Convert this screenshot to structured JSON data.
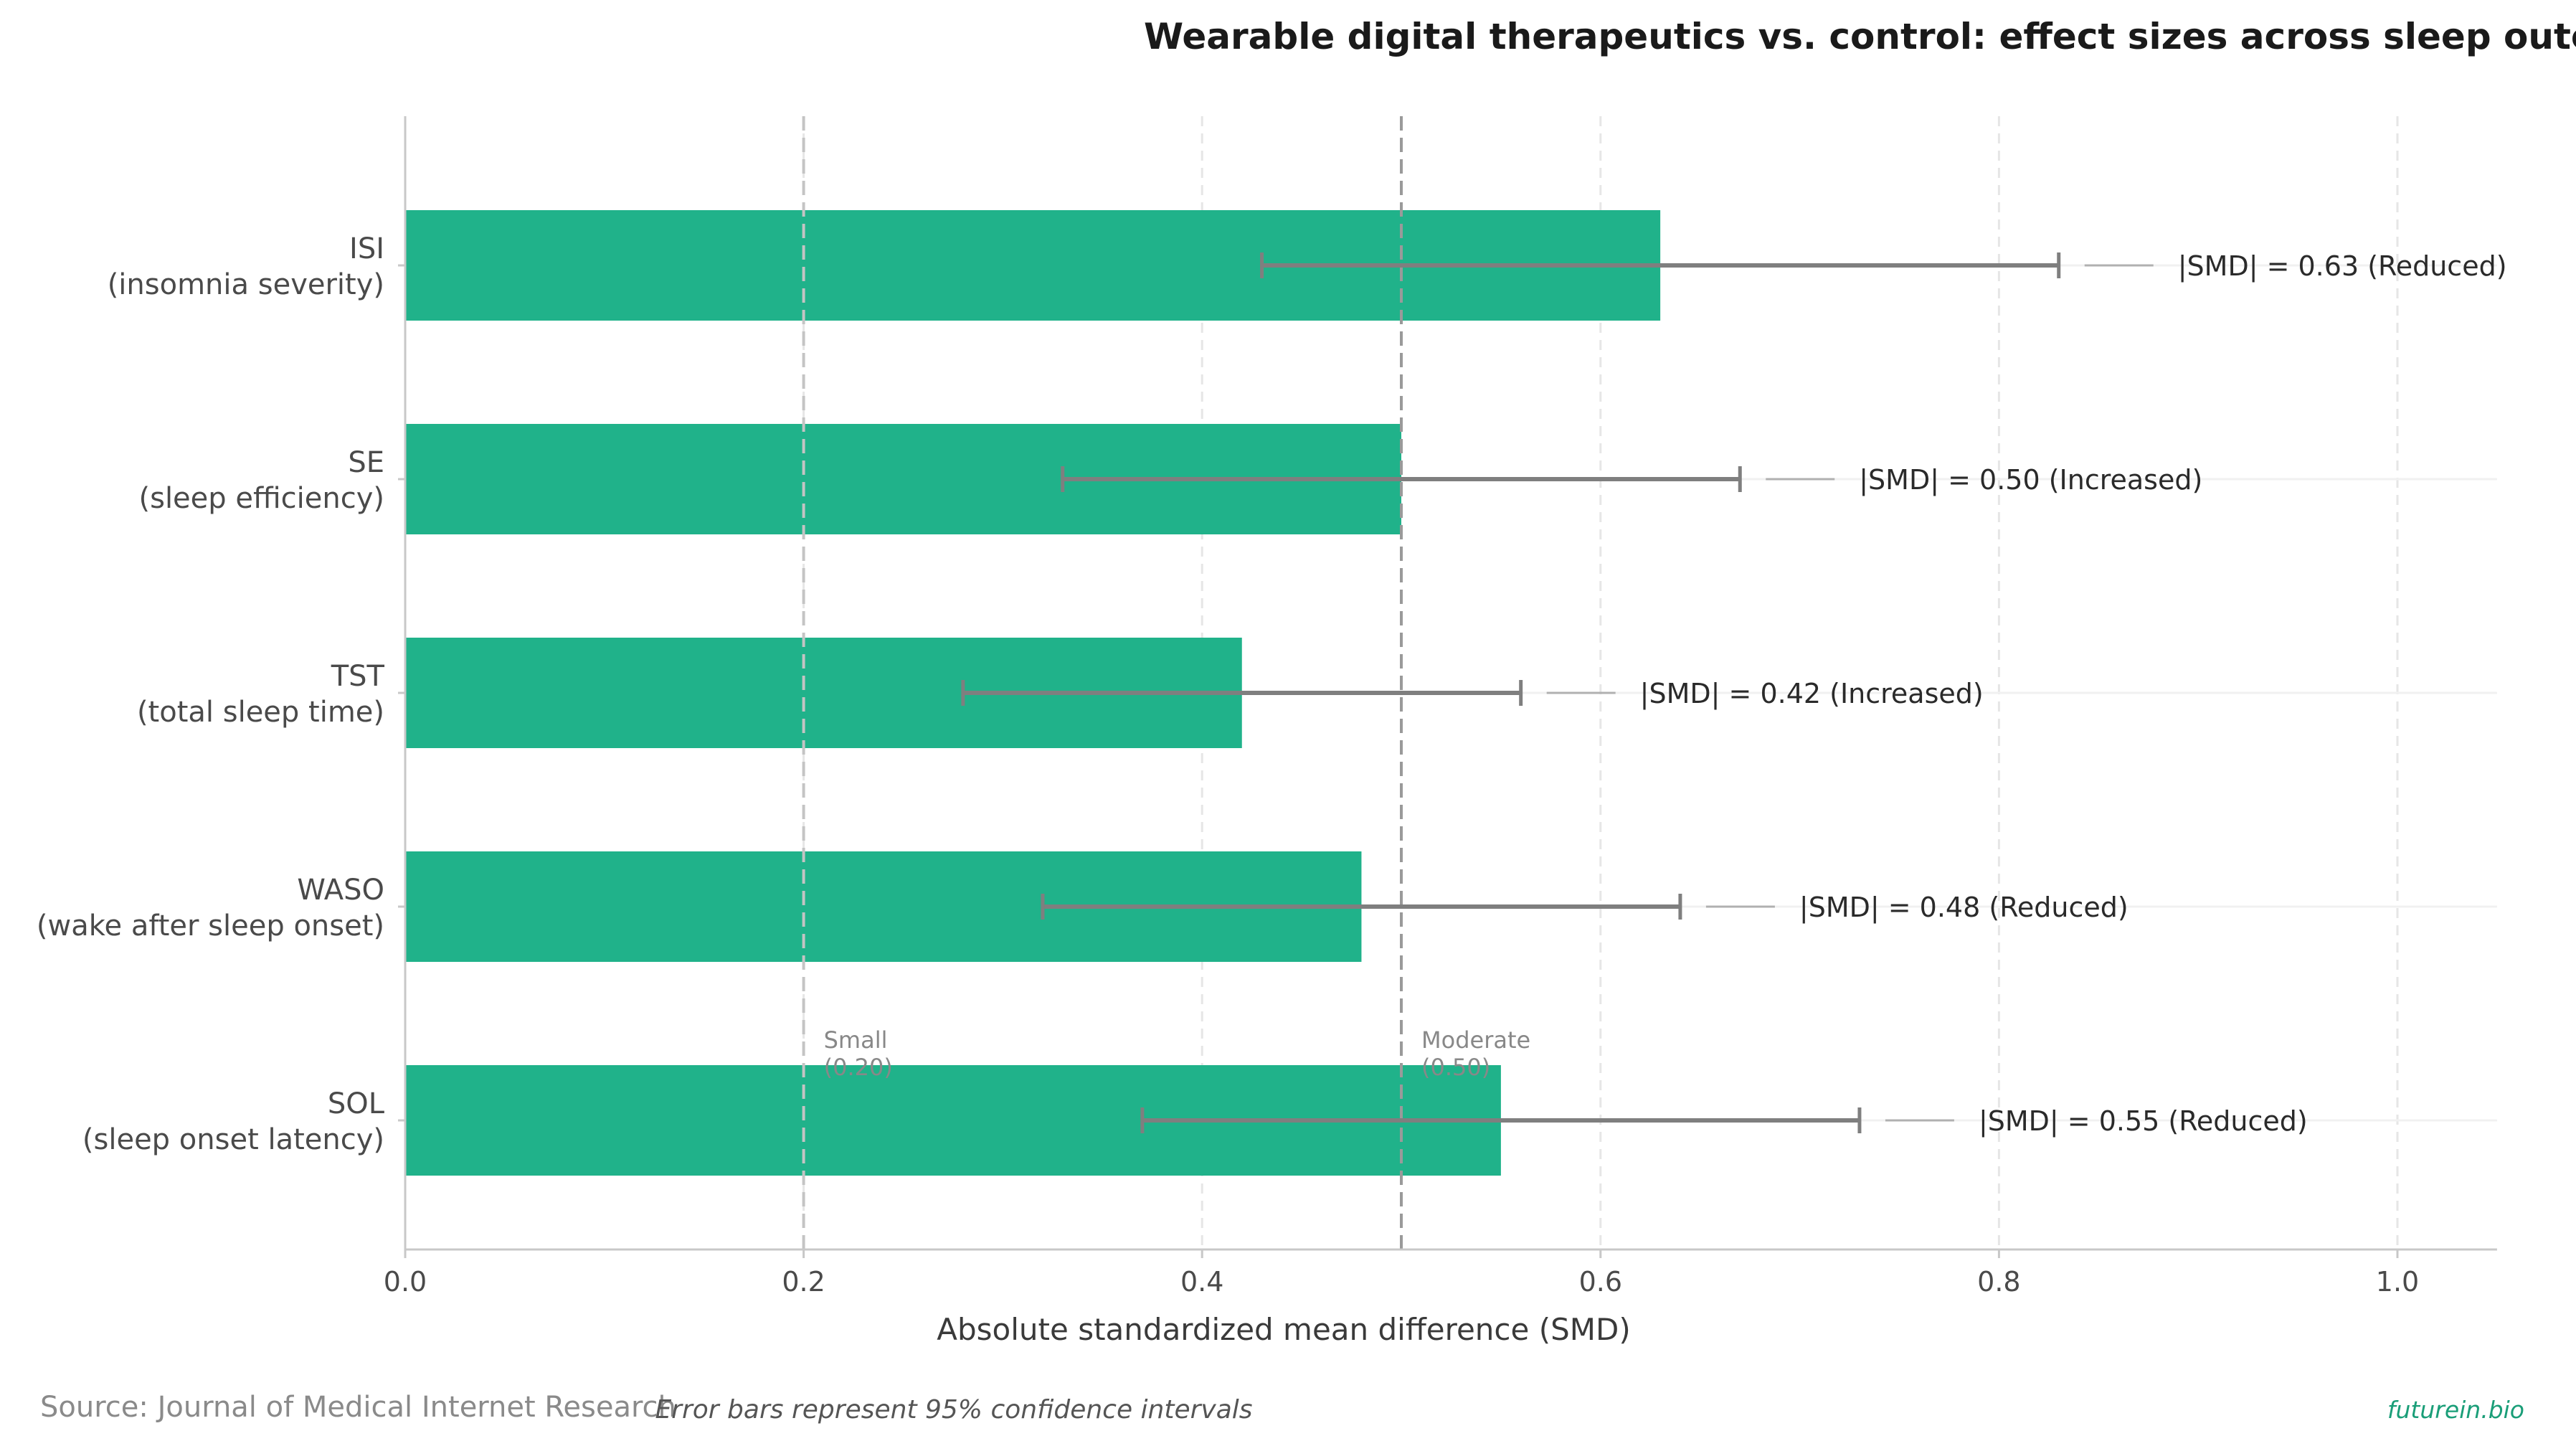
{
  "chart_data": {
    "type": "bar",
    "orientation": "horizontal",
    "title": "Wearable digital therapeutics vs. control: effect sizes across sleep outcomes (meta-analysis of RCTs)",
    "xlabel": "Absolute standardized mean difference (SMD)",
    "ylabel": "",
    "xlim": [
      0,
      1.05
    ],
    "xticks": [
      0.0,
      0.2,
      0.4,
      0.6,
      0.8,
      1.0
    ],
    "xtick_labels": [
      "0.0",
      "0.2",
      "0.4",
      "0.6",
      "0.8",
      "1.0"
    ],
    "grid": "vertical dashed",
    "categories": [
      {
        "code": "ISI",
        "desc": "(insomnia severity)"
      },
      {
        "code": "SE",
        "desc": "(sleep efficiency)"
      },
      {
        "code": "TST",
        "desc": "(total sleep time)"
      },
      {
        "code": "WASO",
        "desc": "(wake after sleep onset)"
      },
      {
        "code": "SOL",
        "desc": "(sleep onset latency)"
      }
    ],
    "values": [
      0.63,
      0.5,
      0.42,
      0.48,
      0.55
    ],
    "ci_low": [
      0.43,
      0.33,
      0.28,
      0.32,
      0.37
    ],
    "ci_high": [
      0.83,
      0.67,
      0.56,
      0.64,
      0.73
    ],
    "annotations": [
      "|SMD| = 0.63  (Reduced)",
      "|SMD| = 0.50  (Increased)",
      "|SMD| = 0.42  (Increased)",
      "|SMD| = 0.48  (Reduced)",
      "|SMD| = 0.55  (Reduced)"
    ],
    "reference_lines": [
      {
        "value": 0.2,
        "label_line1": "Small",
        "label_line2": "(0.20)"
      },
      {
        "value": 0.5,
        "label_line1": "Moderate",
        "label_line2": "(0.50)"
      }
    ],
    "colors": {
      "bar": "#20b28a",
      "errorbar": "#7f7f7f",
      "refline": "#999999"
    }
  },
  "footer": {
    "source": "Source: Journal of Medical Internet Research",
    "note": "Error bars represent 95% confidence intervals",
    "brand": "futurein.bio"
  }
}
